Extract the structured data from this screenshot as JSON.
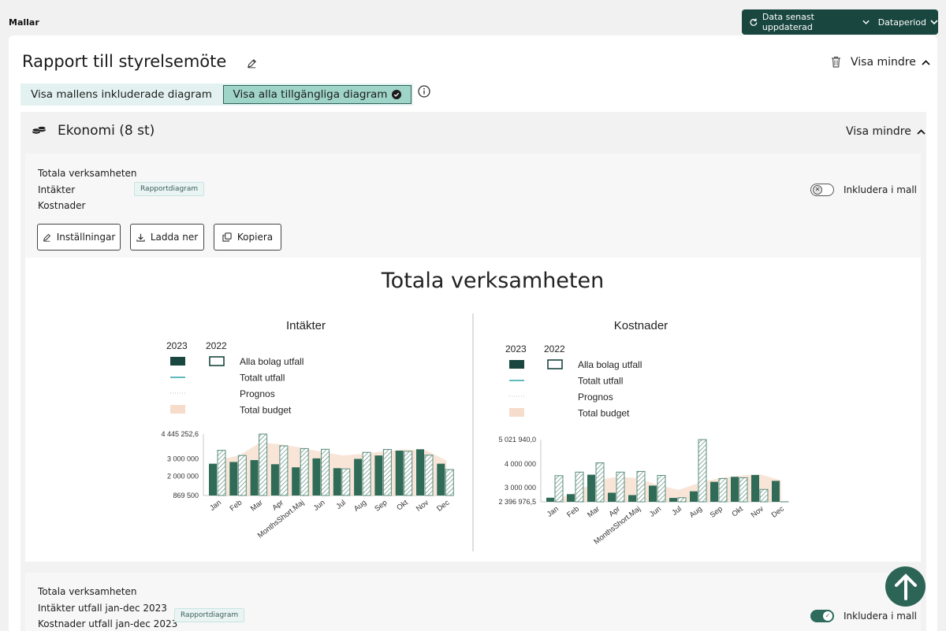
{
  "breadcrumb": "Mallar",
  "data_bar": {
    "updated_label": "Data senast uppdaterad",
    "period_label": "Dataperiod"
  },
  "report": {
    "title": "Rapport till styrelsemöte",
    "collapse_label": "Visa mindre"
  },
  "view_toggle": {
    "included_label": "Visa mallens inkluderade diagram",
    "all_label": "Visa alla tillgängliga diagram"
  },
  "section": {
    "title": "Ekonomi (8 st)",
    "collapse_label": "Visa mindre"
  },
  "chart_items": [
    {
      "lines": [
        "Totala verksamheten",
        "Intäkter",
        "Kostnader"
      ],
      "tag": "Rapportdiagram",
      "include_label": "Inkludera i mall",
      "included": false
    },
    {
      "lines": [
        "Totala verksamheten",
        "Intäkter utfall jan-dec 2023",
        "Kostnader utfall jan-dec 2023"
      ],
      "tag": "Rapportdiagram",
      "include_label": "Inkludera i mall",
      "included": true
    }
  ],
  "actions": {
    "settings_label": "Inställningar",
    "download_label": "Ladda ner",
    "copy_label": "Kopiera"
  },
  "colors": {
    "accent_dark": "#19463f",
    "bar_2023": "#2f6b57",
    "bar_2022_stroke": "#5a8d7e",
    "budget_fill": "#f6dccb",
    "toggle_selected": "#9fd4c9"
  },
  "chart_data": {
    "type": "bar",
    "title": "Totala verksamheten",
    "legend_years": [
      "2023",
      "2022"
    ],
    "legend_items": [
      "Alla bolag utfall",
      "Totalt utfall",
      "Prognos",
      "Total budget"
    ],
    "charts": [
      {
        "title": "Intäkter",
        "categories": [
          "Jan",
          "Feb",
          "Mar",
          "Apr",
          "MonthsShort.Maj",
          "Jun",
          "Jul",
          "Aug",
          "Sep",
          "Okt",
          "Nov",
          "Dec"
        ],
        "y_ticks": [
          "4 445 252,6",
          "3 000 000",
          "2 000 000",
          "869 500"
        ],
        "ylim": [
          869500,
          4445252.6
        ],
        "series": [
          {
            "name": "2023",
            "values": [
              2720000,
              2820000,
              2930000,
              2690000,
              2510000,
              3030000,
              2460000,
              3000000,
              3200000,
              3480000,
              3560000,
              2720000
            ]
          },
          {
            "name": "2022",
            "values": [
              3500000,
              3200000,
              4445252,
              3760000,
              3600000,
              3560000,
              2420000,
              3380000,
              3550000,
              3440000,
              3220000,
              2380000
            ]
          }
        ],
        "budget": [
          2950000,
          3200000,
          3950000,
          3850000,
          3650000,
          3400000,
          3200000,
          3300000,
          3450000,
          3550000,
          3500000,
          2900000
        ]
      },
      {
        "title": "Kostnader",
        "categories": [
          "Jan",
          "Feb",
          "Mar",
          "Apr",
          "MonthsShort.Maj",
          "Jun",
          "Jul",
          "Aug",
          "Sep",
          "Okt",
          "Nov",
          "Dec"
        ],
        "y_ticks": [
          "5 021 940,0",
          "4 000 000",
          "3 000 000",
          "2 396 976,5"
        ],
        "ylim": [
          2396976.5,
          5021940
        ],
        "series": [
          {
            "name": "2023",
            "values": [
              2570000,
              2720000,
              3540000,
              2780000,
              2680000,
              3080000,
              2560000,
              2840000,
              3240000,
              3450000,
              3530000,
              3280000
            ]
          },
          {
            "name": "2022",
            "values": [
              3500000,
              3650000,
              4040000,
              3650000,
              3680000,
              3510000,
              2570000,
              5021940,
              3380000,
              3410000,
              2920000,
              2400000
            ]
          }
        ],
        "budget": [
          2500000,
          2800000,
          3300000,
          3450000,
          3400000,
          3100000,
          2900000,
          3200000,
          3400000,
          3500000,
          3550000,
          3300000
        ]
      }
    ]
  }
}
